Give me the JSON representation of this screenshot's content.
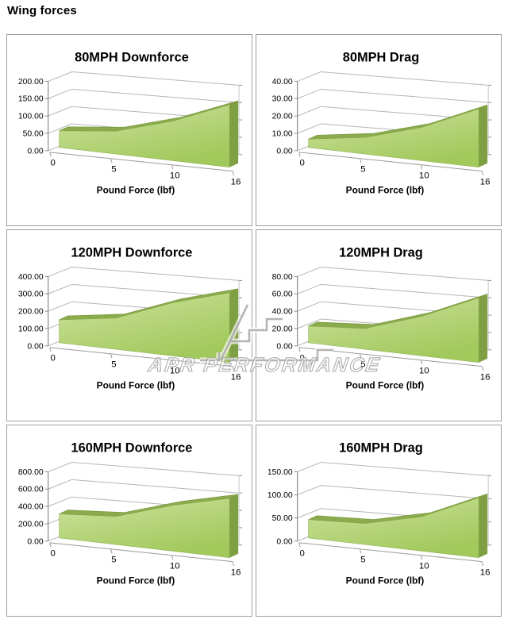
{
  "page": {
    "title": "Wing forces"
  },
  "watermark": {
    "text": "APR PERFORMANCE",
    "stroke_color": "#a8a8a8",
    "casing_color": "#ffffff"
  },
  "colors": {
    "area_gradient_top": "#cde29e",
    "area_gradient_bottom": "#a2c95c",
    "area_ridge": "#8cab4d",
    "area_ridge_edge": "#7d9c42",
    "area_side": "#7fa042",
    "gridline": "#b5b5b5",
    "axis": "#8a8a8a",
    "floor_edge": "#9b9b9b",
    "right_edge": "#c4c4c4",
    "panel_border": "#9e9e9e",
    "text": "#000000"
  },
  "x_axis": {
    "title": "Pound Force (lbf)",
    "categories": [
      "0",
      "5",
      "10",
      "16"
    ]
  },
  "chart_data": [
    {
      "type": "area",
      "title": "80MPH Downforce",
      "categories": [
        "0",
        "5",
        "10",
        "16"
      ],
      "values": [
        40,
        55,
        95,
        150
      ],
      "xlabel": "Pound Force (lbf)",
      "y_ticks": [
        "0.00",
        "50.00",
        "100.00",
        "150.00",
        "200.00"
      ],
      "ylim": [
        0,
        200
      ],
      "grid": true,
      "legend": "none"
    },
    {
      "type": "area",
      "title": "80MPH Drag",
      "categories": [
        "0",
        "5",
        "10",
        "16"
      ],
      "values": [
        4,
        8,
        16,
        28
      ],
      "xlabel": "Pound Force (lbf)",
      "y_ticks": [
        "0.00",
        "10.00",
        "20.00",
        "30.00",
        "40.00"
      ],
      "ylim": [
        0,
        40
      ],
      "grid": true,
      "legend": "none"
    },
    {
      "type": "area",
      "title": "120MPH Downforce",
      "categories": [
        "0",
        "5",
        "10",
        "16"
      ],
      "values": [
        110,
        150,
        255,
        335
      ],
      "xlabel": "Pound Force (lbf)",
      "y_ticks": [
        "0.00",
        "100.00",
        "200.00",
        "300.00",
        "400.00"
      ],
      "ylim": [
        0,
        400
      ],
      "grid": true,
      "legend": "none"
    },
    {
      "type": "area",
      "title": "120MPH Drag",
      "categories": [
        "0",
        "5",
        "10",
        "16"
      ],
      "values": [
        16,
        20,
        38,
        62
      ],
      "xlabel": "Pound Force (lbf)",
      "y_ticks": [
        "0.00",
        "20.00",
        "40.00",
        "60.00",
        "80.00"
      ],
      "ylim": [
        0,
        80
      ],
      "grid": true,
      "legend": "none"
    },
    {
      "type": "area",
      "title": "160MPH Downforce",
      "categories": [
        "0",
        "5",
        "10",
        "16"
      ],
      "values": [
        230,
        270,
        440,
        570
      ],
      "xlabel": "Pound Force (lbf)",
      "y_ticks": [
        "0.00",
        "200.00",
        "400.00",
        "600.00",
        "800.00"
      ],
      "ylim": [
        0,
        800
      ],
      "grid": true,
      "legend": "none"
    },
    {
      "type": "area",
      "title": "160MPH Drag",
      "categories": [
        "0",
        "5",
        "10",
        "16"
      ],
      "values": [
        33,
        38,
        62,
        108
      ],
      "xlabel": "Pound Force (lbf)",
      "y_ticks": [
        "0.00",
        "50.00",
        "100.00",
        "150.00"
      ],
      "ylim": [
        0,
        150
      ],
      "grid": true,
      "legend": "none"
    }
  ]
}
